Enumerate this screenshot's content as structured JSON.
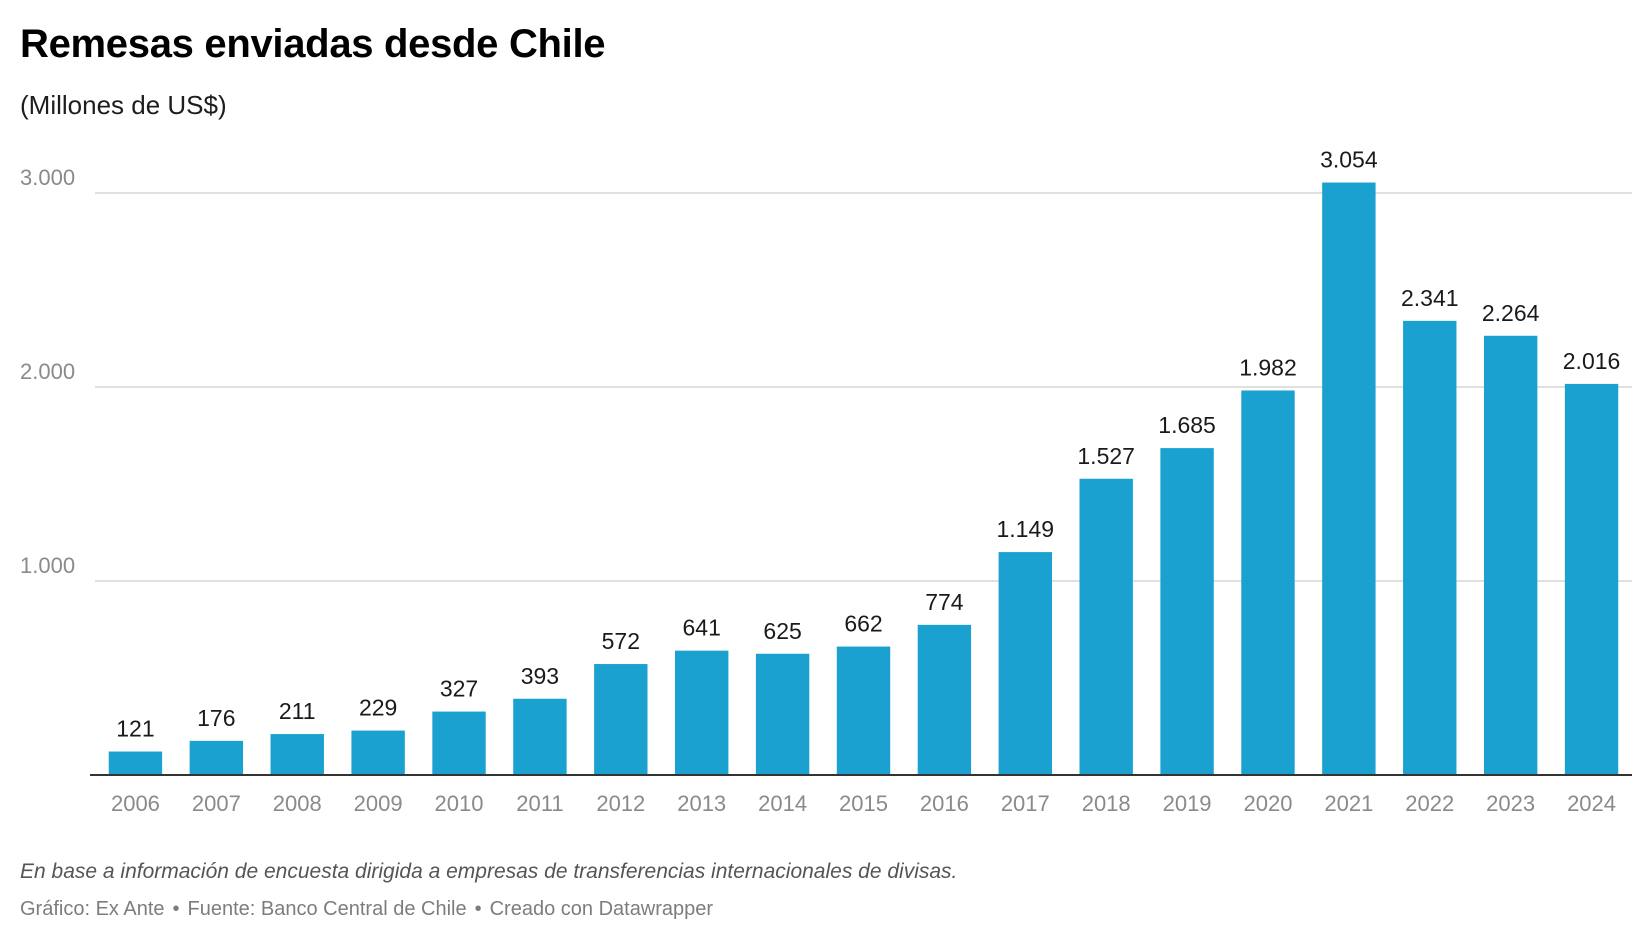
{
  "header": {
    "title": "Remesas enviadas desde Chile",
    "subtitle": "(Millones de US$)"
  },
  "footer": {
    "notes": "En base a información de encuesta dirigida a empresas de transferencias internacionales de divisas.",
    "credit_chart": "Gráfico: Ex Ante",
    "credit_source": "Fuente: Banco Central de Chile",
    "credit_tool": "Creado con Datawrapper",
    "separator": "•"
  },
  "colors": {
    "bar": "#1aa1cf",
    "grid": "#e0e0e0",
    "axis": "#333333",
    "tick_label": "#8a8a8a",
    "value_label": "#1a1a1a"
  },
  "chart_data": {
    "type": "bar",
    "categories": [
      "2006",
      "2007",
      "2008",
      "2009",
      "2010",
      "2011",
      "2012",
      "2013",
      "2014",
      "2015",
      "2016",
      "2017",
      "2018",
      "2019",
      "2020",
      "2021",
      "2022",
      "2023",
      "2024"
    ],
    "values": [
      121,
      176,
      211,
      229,
      327,
      393,
      572,
      641,
      625,
      662,
      774,
      1149,
      1527,
      1685,
      1982,
      3054,
      2341,
      2264,
      2016
    ],
    "value_labels": [
      "121",
      "176",
      "211",
      "229",
      "327",
      "393",
      "572",
      "641",
      "625",
      "662",
      "774",
      "1.149",
      "1.527",
      "1.685",
      "1.982",
      "3.054",
      "2.341",
      "2.264",
      "2.016"
    ],
    "y_ticks": [
      1000,
      2000,
      3000
    ],
    "y_tick_labels": [
      "1.000",
      "2.000",
      "3.000"
    ],
    "ylim": [
      0,
      3000
    ],
    "grid": true,
    "legend": "none",
    "xlabel": "",
    "ylabel": ""
  }
}
